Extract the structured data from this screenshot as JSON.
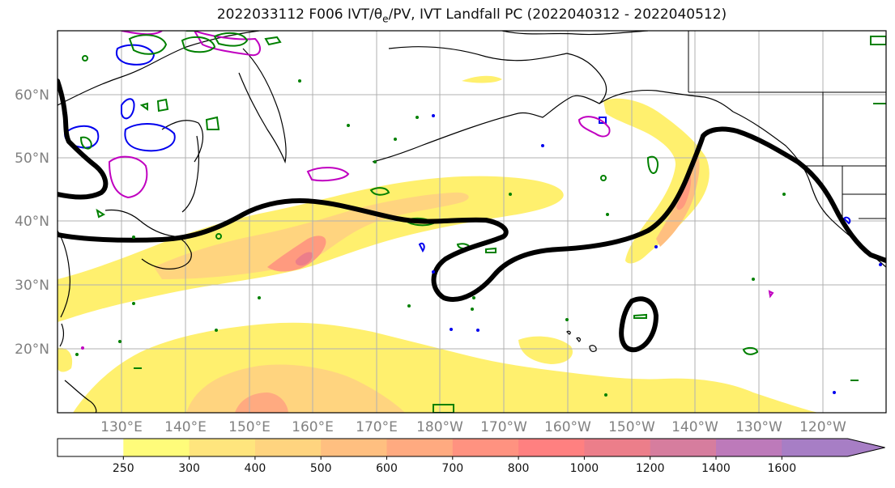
{
  "title": "2022033112 F006 IVT/θe/PV, IVT Landfall PC (2022040312 - 2022040512)",
  "map": {
    "lat_labels": [
      "60°N",
      "50°N",
      "40°N",
      "30°N",
      "20°N"
    ],
    "lon_labels": [
      "130°E",
      "140°E",
      "150°E",
      "160°E",
      "170°E",
      "180°W",
      "170°W",
      "160°W",
      "150°W",
      "140°W",
      "130°W",
      "120°W"
    ],
    "colors": {
      "pv_contour": "#000000",
      "theta_e_low": "#0000ee",
      "theta_e_mid": "#008000",
      "theta_e_high": "#c000c0",
      "coastline": "#000000",
      "grid": "#b0b0b0"
    }
  },
  "colorbar": {
    "labels": [
      "250",
      "300",
      "400",
      "500",
      "600",
      "700",
      "800",
      "1000",
      "1200",
      "1400",
      "1600"
    ],
    "colors": [
      "#ffffff",
      "#fffc7a",
      "#ffe57d",
      "#ffd47f",
      "#ffbf80",
      "#ffaa80",
      "#ff9280",
      "#ff8080",
      "#ec7e8a",
      "#d67d9e",
      "#bd7aba",
      "#a77ec5"
    ]
  }
}
